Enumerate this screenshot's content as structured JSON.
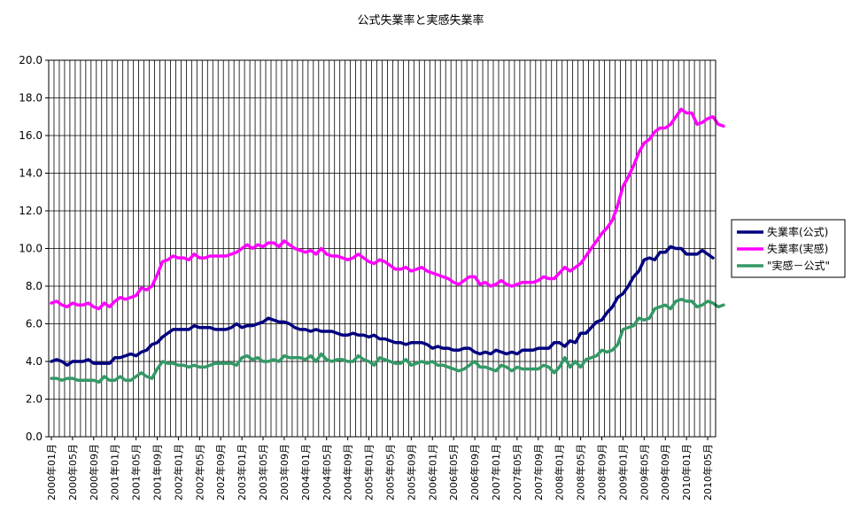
{
  "chart_data": {
    "type": "line",
    "title": "公式失業率と実感失業率",
    "xlabel": "",
    "ylabel": "",
    "ylim": [
      0,
      20
    ],
    "yticks": [
      "0.0",
      "2.0",
      "4.0",
      "6.0",
      "8.0",
      "10.0",
      "12.0",
      "14.0",
      "16.0",
      "18.0",
      "20.0"
    ],
    "x_start": "2000-01",
    "x_end": "2010-06",
    "xtick_labels": [
      "2000年01月",
      "2000年05月",
      "2000年09月",
      "2001年01月",
      "2001年05月",
      "2001年09月",
      "2002年01月",
      "2002年05月",
      "2002年09月",
      "2003年01月",
      "2003年05月",
      "2003年09月",
      "2004年01月",
      "2004年05月",
      "2004年09月",
      "2005年01月",
      "2005年05月",
      "2005年09月",
      "2006年01月",
      "2006年05月",
      "2006年09月",
      "2007年01月",
      "2007年05月",
      "2007年09月",
      "2008年01月",
      "2008年05月",
      "2008年09月",
      "2009年01月",
      "2009年05月",
      "2009年09月",
      "2010年01月",
      "2010年05月"
    ],
    "grid": "vertical lines per month, horizontal at each tick",
    "legend_position": "right",
    "series": [
      {
        "name": "失業率(公式)",
        "color": "#000080",
        "values": [
          4.0,
          4.1,
          4.0,
          3.8,
          4.0,
          4.0,
          4.0,
          4.1,
          3.9,
          3.9,
          3.9,
          3.9,
          4.2,
          4.2,
          4.3,
          4.4,
          4.3,
          4.5,
          4.6,
          4.9,
          5.0,
          5.3,
          5.5,
          5.7,
          5.7,
          5.7,
          5.7,
          5.9,
          5.8,
          5.8,
          5.8,
          5.7,
          5.7,
          5.7,
          5.8,
          6.0,
          5.8,
          5.9,
          5.9,
          6.0,
          6.1,
          6.3,
          6.2,
          6.1,
          6.1,
          6.0,
          5.8,
          5.7,
          5.7,
          5.6,
          5.7,
          5.6,
          5.6,
          5.6,
          5.5,
          5.4,
          5.4,
          5.5,
          5.4,
          5.4,
          5.3,
          5.4,
          5.2,
          5.2,
          5.1,
          5.0,
          5.0,
          4.9,
          5.0,
          5.0,
          5.0,
          4.9,
          4.7,
          4.8,
          4.7,
          4.7,
          4.6,
          4.6,
          4.7,
          4.7,
          4.5,
          4.4,
          4.5,
          4.4,
          4.6,
          4.5,
          4.4,
          4.5,
          4.4,
          4.6,
          4.6,
          4.6,
          4.7,
          4.7,
          4.7,
          5.0,
          5.0,
          4.8,
          5.1,
          5.0,
          5.5,
          5.5,
          5.8,
          6.1,
          6.2,
          6.6,
          6.9,
          7.4,
          7.6,
          8.0,
          8.5,
          8.8,
          9.4,
          9.5,
          9.4,
          9.8,
          9.8,
          10.1,
          10.0,
          10.0,
          9.7,
          9.7,
          9.7,
          9.9,
          9.7,
          9.5
        ]
      },
      {
        "name": "失業率(実感)",
        "color": "#FF00FF",
        "values": [
          7.1,
          7.2,
          7.0,
          6.9,
          7.1,
          7.0,
          7.0,
          7.1,
          6.9,
          6.8,
          7.1,
          6.9,
          7.2,
          7.4,
          7.3,
          7.4,
          7.5,
          7.9,
          7.8,
          8.0,
          8.6,
          9.3,
          9.4,
          9.6,
          9.5,
          9.5,
          9.4,
          9.7,
          9.5,
          9.5,
          9.6,
          9.6,
          9.6,
          9.6,
          9.7,
          9.8,
          10.0,
          10.2,
          10.0,
          10.2,
          10.1,
          10.3,
          10.3,
          10.1,
          10.4,
          10.2,
          10.0,
          9.9,
          9.8,
          9.9,
          9.7,
          10.0,
          9.7,
          9.6,
          9.6,
          9.5,
          9.4,
          9.5,
          9.7,
          9.5,
          9.3,
          9.2,
          9.4,
          9.3,
          9.1,
          8.9,
          8.9,
          9.0,
          8.8,
          8.9,
          9.0,
          8.8,
          8.7,
          8.6,
          8.5,
          8.4,
          8.2,
          8.1,
          8.3,
          8.5,
          8.5,
          8.1,
          8.2,
          8.0,
          8.1,
          8.3,
          8.1,
          8.0,
          8.1,
          8.2,
          8.2,
          8.2,
          8.3,
          8.5,
          8.4,
          8.4,
          8.7,
          9.0,
          8.8,
          9.0,
          9.2,
          9.6,
          10.0,
          10.4,
          10.8,
          11.1,
          11.5,
          12.3,
          13.3,
          13.8,
          14.4,
          15.1,
          15.6,
          15.8,
          16.2,
          16.4,
          16.4,
          16.6,
          17.0,
          17.4,
          17.2,
          17.2,
          16.6,
          16.7,
          16.9,
          17.0,
          16.6,
          16.5
        ]
      },
      {
        "name": "\"実感－公式\"",
        "color": "#339966",
        "values": [
          3.1,
          3.1,
          3.0,
          3.1,
          3.1,
          3.0,
          3.0,
          3.0,
          3.0,
          2.9,
          3.2,
          3.0,
          3.0,
          3.2,
          3.0,
          3.0,
          3.2,
          3.4,
          3.2,
          3.1,
          3.6,
          4.0,
          3.9,
          3.9,
          3.8,
          3.8,
          3.7,
          3.8,
          3.7,
          3.7,
          3.8,
          3.9,
          3.9,
          3.9,
          3.9,
          3.8,
          4.2,
          4.3,
          4.1,
          4.2,
          4.0,
          4.0,
          4.1,
          4.0,
          4.3,
          4.2,
          4.2,
          4.2,
          4.1,
          4.3,
          4.0,
          4.4,
          4.1,
          4.0,
          4.1,
          4.1,
          4.0,
          4.0,
          4.3,
          4.1,
          4.0,
          3.8,
          4.2,
          4.1,
          4.0,
          3.9,
          3.9,
          4.1,
          3.8,
          3.9,
          4.0,
          3.9,
          4.0,
          3.8,
          3.8,
          3.7,
          3.6,
          3.5,
          3.6,
          3.8,
          4.0,
          3.7,
          3.7,
          3.6,
          3.5,
          3.8,
          3.7,
          3.5,
          3.7,
          3.6,
          3.6,
          3.6,
          3.6,
          3.8,
          3.7,
          3.4,
          3.7,
          4.2,
          3.7,
          4.0,
          3.7,
          4.1,
          4.2,
          4.3,
          4.6,
          4.5,
          4.6,
          4.9,
          5.7,
          5.8,
          5.9,
          6.3,
          6.2,
          6.3,
          6.8,
          6.9,
          7.0,
          6.8,
          7.2,
          7.3,
          7.2,
          7.2,
          6.9,
          7.0,
          7.2,
          7.1,
          6.9,
          7.0
        ]
      }
    ]
  }
}
